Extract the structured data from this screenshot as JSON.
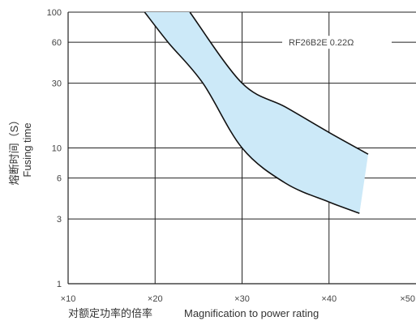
{
  "chart_data": {
    "type": "area",
    "title": "",
    "xlabel_cn": "对额定功率的倍率",
    "xlabel_en": "Magnification to power rating",
    "ylabel_cn": "熔断时间（S）",
    "ylabel_en": "Fusing time",
    "x_range": [
      10,
      50
    ],
    "y_scale": "log",
    "y_range": [
      1,
      100
    ],
    "x_ticks": [
      {
        "value": 10,
        "label": "×10"
      },
      {
        "value": 20,
        "label": "×20"
      },
      {
        "value": 30,
        "label": "×30"
      },
      {
        "value": 40,
        "label": "×40"
      },
      {
        "value": 50,
        "label": "×50"
      }
    ],
    "y_ticks": [
      {
        "value": 100,
        "label": "100"
      },
      {
        "value": 60,
        "label": "60"
      },
      {
        "value": 30,
        "label": "30"
      },
      {
        "value": 10,
        "label": "10"
      },
      {
        "value": 6,
        "label": "6"
      },
      {
        "value": 3,
        "label": "3"
      },
      {
        "value": 1,
        "label": "1"
      }
    ],
    "grid": true,
    "series": [
      {
        "name": "RF26B2E 0.22Ω",
        "upper_boundary": [
          [
            24,
            100
          ],
          [
            30,
            30
          ],
          [
            35,
            20
          ],
          [
            40,
            13
          ],
          [
            44.5,
            9
          ]
        ],
        "lower_boundary": [
          [
            18.8,
            100
          ],
          [
            21.5,
            60
          ],
          [
            25.5,
            30
          ],
          [
            30,
            10
          ],
          [
            35,
            5.5
          ],
          [
            40,
            4
          ],
          [
            43.5,
            3.3
          ]
        ],
        "fill_color": "#cce9f8",
        "line_color": "#111111"
      }
    ],
    "legend_placement": "top-right"
  }
}
